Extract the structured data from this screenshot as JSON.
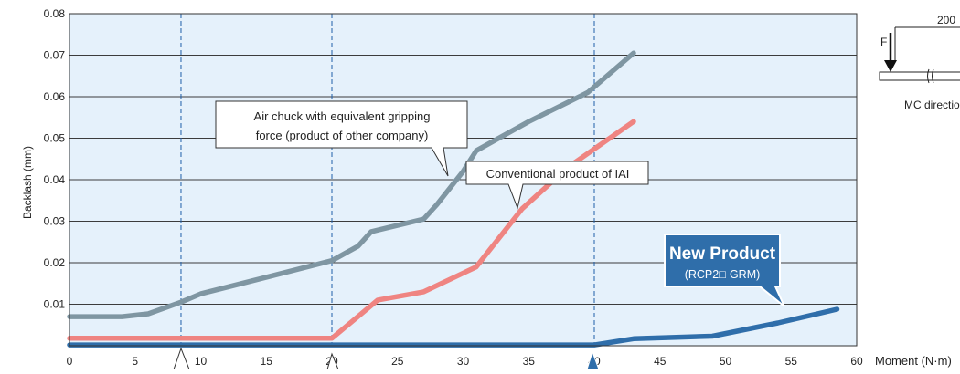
{
  "chart_data": {
    "type": "line",
    "title": "",
    "xlabel": "Moment (N·m)",
    "ylabel": "Backlash (mm)",
    "xlim": [
      0,
      60
    ],
    "ylim": [
      0,
      0.08
    ],
    "x_ticks": [
      "0",
      "5",
      "10",
      "15",
      "20",
      "25",
      "30",
      "35",
      "40",
      "45",
      "50",
      "55",
      "60"
    ],
    "y_ticks": [
      "0.01",
      "0.02",
      "0.03",
      "0.04",
      "0.05",
      "0.06",
      "0.07",
      "0.08"
    ],
    "grid": true,
    "series": [
      {
        "color": "#7f96a2",
        "x": [
          0,
          4,
          6,
          8.5,
          10,
          15,
          20,
          22,
          23,
          27,
          28,
          30,
          31,
          35,
          39.5,
          43
        ],
        "y": [
          0.007,
          0.007,
          0.0077,
          0.0105,
          0.0125,
          0.0165,
          0.0205,
          0.024,
          0.0275,
          0.0305,
          0.034,
          0.042,
          0.047,
          0.054,
          0.061,
          0.0705
        ]
      },
      {
        "color": "#ef8481",
        "x": [
          0,
          20,
          23.5,
          27,
          31,
          34.5,
          38,
          43
        ],
        "y": [
          0.0018,
          0.0018,
          0.011,
          0.013,
          0.019,
          0.033,
          0.043,
          0.054
        ]
      },
      {
        "color": "#2f6eaa",
        "x": [
          0,
          20,
          30,
          40,
          43,
          49,
          54,
          58.5
        ],
        "y": [
          0.0002,
          0.0002,
          0.0002,
          0.0002,
          0.0017,
          0.0023,
          0.0055,
          0.0088
        ]
      }
    ],
    "annotations": {
      "other_company": [
        "Air chuck with equivalent gripping",
        "force (product of other company)"
      ],
      "conventional": "Conventional product of IAI",
      "new_product_title": "New Product",
      "new_product_model": "(RCP2□-GRM)"
    },
    "reference_x": [
      8.5,
      20,
      40
    ]
  },
  "inset": {
    "dimension": "200",
    "force_label": "F",
    "direction_label": "MC directio"
  },
  "colors": {
    "plot_bg": "#e5f1fb",
    "grid": "#3c3c3c",
    "ref_line": "#1e5ea8",
    "callout_fill": "#2f6eaa"
  }
}
